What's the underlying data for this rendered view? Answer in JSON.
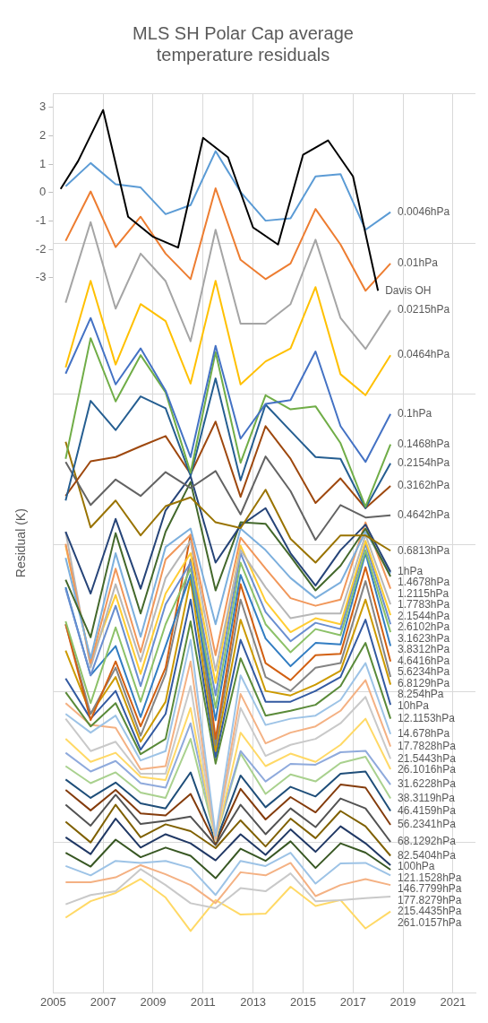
{
  "chart_data": {
    "type": "line",
    "title": "MLS SH Polar Cap average temperature residuals",
    "ylabel": "Residual (K)",
    "x": [
      2005.5,
      2006.5,
      2007.5,
      2008.5,
      2009.5,
      2010.5,
      2011.5,
      2012.5,
      2013.5,
      2014.5,
      2015.5,
      2016.5,
      2017.5,
      2018.5
    ],
    "xlim": [
      2005,
      2021.9
    ],
    "xticks": [
      2005,
      2007,
      2009,
      2011,
      2013,
      2015,
      2017,
      2019,
      2021
    ],
    "ylim": [
      -28.2,
      3.5
    ],
    "yticks": [
      {
        "value": -22.9,
        "label": null
      },
      {
        "value": -17.6,
        "label": null
      },
      {
        "value": -12.4,
        "label": null
      },
      {
        "value": -7.1,
        "label": null
      },
      -3,
      -2,
      {
        "value": -1.8,
        "label": null
      },
      -1,
      0,
      1,
      2,
      3,
      {
        "value": 3.5,
        "label": null
      }
    ],
    "grid": true,
    "legend": false,
    "marker": "none",
    "line_style": "solid",
    "series": [
      {
        "name": "Davis OH",
        "color": "#000000",
        "x": [
          2005.3,
          2006,
          2007,
          2008,
          2009,
          2010,
          2011,
          2012,
          2013,
          2014,
          2015,
          2016,
          2017,
          2018
        ],
        "values": [
          0.13,
          1.11,
          2.91,
          -0.85,
          -1.56,
          -1.94,
          1.93,
          1.24,
          -1.23,
          -1.83,
          1.33,
          1.84,
          0.57,
          -3.46
        ]
      },
      {
        "name": "0.0046hPa",
        "color": "#5b9bd5",
        "values": [
          0.22,
          1.04,
          0.29,
          0.18,
          -0.76,
          -0.44,
          1.46,
          0.02,
          -0.99,
          -0.91,
          0.57,
          0.65,
          -1.31,
          -0.69
        ]
      },
      {
        "name": "0.01hPa",
        "color": "#ed7d31",
        "values": [
          -1.7,
          0.04,
          -1.92,
          -0.85,
          -2.15,
          -3.05,
          0.15,
          -2.37,
          -3.05,
          -2.5,
          -0.58,
          -1.83,
          -3.46,
          -2.5
        ]
      },
      {
        "name": "0.0215hPa",
        "color": "#a5a5a5",
        "values": [
          -3.88,
          -1.04,
          -4.09,
          -2.15,
          -3.12,
          -5.24,
          -1.31,
          -4.62,
          -4.62,
          -3.93,
          -1.66,
          -4.42,
          -5.51,
          -4.15
        ]
      },
      {
        "name": "0.0464hPa",
        "color": "#ffc000",
        "values": [
          -6.16,
          -3.11,
          -6.06,
          -3.93,
          -4.53,
          -6.73,
          -3.11,
          -6.76,
          -5.95,
          -5.49,
          -3.33,
          -6.4,
          -7.14,
          -5.73
        ]
      },
      {
        "name": "0.1hPa",
        "color": "#4472c4",
        "values": [
          -6.38,
          -4.42,
          -6.76,
          -5.49,
          -6.98,
          -9.32,
          -5.4,
          -8.67,
          -7.45,
          -7.31,
          -5.6,
          -8.23,
          -9.49,
          -7.8
        ]
      },
      {
        "name": "0.1468hPa",
        "color": "#70ad47",
        "values": [
          -9.38,
          -5.13,
          -7.36,
          -5.73,
          -7.04,
          -9.87,
          -5.62,
          -9.52,
          -7.14,
          -7.64,
          -7.53,
          -8.83,
          -11.07,
          -8.87
        ]
      },
      {
        "name": "0.2154hPa",
        "color": "#255e91",
        "values": [
          -10.85,
          -7.34,
          -8.37,
          -7.18,
          -7.6,
          -9.98,
          -6.55,
          -10.14,
          -7.47,
          -8.4,
          -9.32,
          -9.38,
          -11.12,
          -9.54
        ]
      },
      {
        "name": "0.3162hPa",
        "color": "#9e480e",
        "values": [
          -10.69,
          -9.47,
          -9.32,
          -8.94,
          -8.58,
          -9.92,
          -8.07,
          -10.72,
          -8.23,
          -9.38,
          -10.94,
          -10.07,
          -11.12,
          -10.34
        ]
      },
      {
        "name": "0.4642hPa",
        "color": "#636363",
        "values": [
          -9.49,
          -11.01,
          -10.11,
          -10.69,
          -9.85,
          -10.41,
          -9.81,
          -11.34,
          -9.3,
          -10.52,
          -12.24,
          -11.01,
          -11.45,
          -11.37
        ]
      },
      {
        "name": "0.6813hPa",
        "color": "#997300",
        "values": [
          -8.78,
          -11.8,
          -10.85,
          -12.08,
          -11.05,
          -10.74,
          -11.62,
          -11.82,
          -10.47,
          -12.2,
          -13.04,
          -12.08,
          -12.08,
          -12.62
        ]
      },
      {
        "name": "1hPa",
        "color": "#264478",
        "values": [
          -11.95,
          -14.13,
          -11.5,
          -13.96,
          -11.2,
          -10.0,
          -13.04,
          -11.73,
          -11.12,
          -12.71,
          -13.85,
          -12.6,
          -11.7,
          -13.36
        ]
      },
      {
        "name": "1.2115hPa",
        "color": "#43682b",
        "values": [
          -13.64,
          -15.67,
          -12.0,
          -14.83,
          -11.95,
          -10.2,
          -14.02,
          -11.62,
          -11.67,
          -12.82,
          -14.02,
          -13.15,
          -11.84,
          -13.53
        ]
      },
      {
        "name": "1.4678hPa",
        "color": "#7cafdd",
        "values": [
          -12.87,
          -16.41,
          -12.71,
          -15.65,
          -12.49,
          -11.84,
          -15.21,
          -11.84,
          -12.6,
          -13.58,
          -14.29,
          -13.74,
          -11.95,
          -13.42
        ]
      },
      {
        "name": "1.7783hPa",
        "color": "#f1975a",
        "values": [
          -12.38,
          -16.58,
          -13.25,
          -16.2,
          -12.93,
          -12.06,
          -16.3,
          -12.16,
          -13.25,
          -14.29,
          -14.56,
          -14.34,
          -11.62,
          -13.96
        ]
      },
      {
        "name": "2.1544hPa",
        "color": "#b7b7b7",
        "values": [
          -11.95,
          -16.74,
          -13.8,
          -16.52,
          -13.58,
          -12.27,
          -16.85,
          -12.6,
          -13.91,
          -15.0,
          -14.83,
          -14.83,
          -12.06,
          -14.51
        ]
      },
      {
        "name": "2.6102hPa",
        "color": "#ffcd33",
        "values": [
          -12.44,
          -16.52,
          -14.18,
          -16.96,
          -14.13,
          -12.71,
          -17.28,
          -12.44,
          -14.4,
          -15.49,
          -15.0,
          -15.21,
          -12.27,
          -14.89
        ]
      },
      {
        "name": "3.1623hPa",
        "color": "#698ed0",
        "values": [
          -13.96,
          -17.01,
          -14.56,
          -17.39,
          -14.51,
          -13.04,
          -17.72,
          -12.71,
          -14.78,
          -15.81,
          -15.16,
          -15.38,
          -12.38,
          -15.21
        ]
      },
      {
        "name": "3.8312hPa",
        "color": "#8cc168",
        "values": [
          -15.11,
          -17.99,
          -15.32,
          -17.94,
          -15.21,
          -13.25,
          -18.16,
          -13.04,
          -15.21,
          -16.2,
          -15.38,
          -15.6,
          -12.6,
          -15.49
        ]
      },
      {
        "name": "4.6416hPa",
        "color": "#327dc2",
        "values": [
          -13.91,
          -17.01,
          -15.98,
          -18.48,
          -15.98,
          -13.47,
          -18.59,
          -13.47,
          -15.71,
          -16.69,
          -15.87,
          -15.92,
          -12.71,
          -15.98
        ]
      },
      {
        "name": "5.6234hPa",
        "color": "#d26012",
        "values": [
          -15.21,
          -18.59,
          -16.52,
          -18.81,
          -16.74,
          -12.06,
          -19.25,
          -13.8,
          -16.58,
          -17.18,
          -16.3,
          -16.25,
          -13.2,
          -16.52
        ]
      },
      {
        "name": "6.8129hPa",
        "color": "#848484",
        "values": [
          -15.21,
          -18.37,
          -16.74,
          -19.14,
          -16.96,
          -12.93,
          -19.46,
          -14.34,
          -17.07,
          -17.56,
          -16.74,
          -16.58,
          -13.69,
          -17.07
        ]
      },
      {
        "name": "8.254hPa",
        "color": "#cc9a00",
        "values": [
          -16.14,
          -18.37,
          -17.07,
          -19.35,
          -17.94,
          -13.64,
          -19.68,
          -15.05,
          -17.56,
          -17.72,
          -17.34,
          -16.85,
          -14.34,
          -17.34
        ]
      },
      {
        "name": "10hPa",
        "color": "#335aa1",
        "values": [
          -17.12,
          -18.54,
          -17.56,
          -19.63,
          -18.37,
          -14.34,
          -19.9,
          -15.76,
          -17.94,
          -17.94,
          -17.56,
          -17.07,
          -15.05,
          -18.05
        ]
      },
      {
        "name": "12.1153hPa",
        "color": "#5a8a39",
        "values": [
          -17.61,
          -18.81,
          -17.99,
          -19.79,
          -19.25,
          -15.11,
          -20.12,
          -16.41,
          -18.43,
          -18.26,
          -18.05,
          -17.39,
          -15.87,
          -18.54
        ]
      },
      {
        "name": "14.678hPa",
        "color": "#9dc3e6",
        "values": [
          -18.37,
          -19.03,
          -18.43,
          -20.01,
          -19.68,
          -15.76,
          -22.66,
          -17.01,
          -18.76,
          -18.54,
          -18.43,
          -17.88,
          -16.58,
          -19.08
        ]
      },
      {
        "name": "17.7828hPa",
        "color": "#f4b183",
        "values": [
          -17.99,
          -18.76,
          -18.86,
          -20.32,
          -20.21,
          -16.52,
          -22.77,
          -17.67,
          -19.41,
          -19.03,
          -18.81,
          -18.26,
          -17.18,
          -19.52
        ]
      },
      {
        "name": "21.5443hPa",
        "color": "#c9c9c9",
        "values": [
          -18.54,
          -19.68,
          -19.35,
          -20.48,
          -20.48,
          -17.39,
          -22.82,
          -18.16,
          -19.85,
          -19.46,
          -19.25,
          -18.7,
          -17.77,
          -19.95
        ]
      },
      {
        "name": "26.1016hPa",
        "color": "#ffd966",
        "values": [
          -19.25,
          -20.06,
          -19.74,
          -20.59,
          -20.7,
          -18.16,
          -22.86,
          -19.03,
          -20.21,
          -19.77,
          -20.06,
          -19.46,
          -18.54,
          -20.32
        ]
      },
      {
        "name": "31.6228hPa",
        "color": "#8faadc",
        "values": [
          -19.74,
          -20.4,
          -20.03,
          -20.81,
          -20.97,
          -18.7,
          -22.72,
          -19.68,
          -20.75,
          -20.13,
          -20.16,
          -19.72,
          -19.67,
          -20.86
        ]
      },
      {
        "name": "38.3119hPa",
        "color": "#a9d18e",
        "values": [
          -20.21,
          -20.81,
          -20.43,
          -21.14,
          -21.33,
          -19.25,
          -22.77,
          -19.77,
          -21.19,
          -20.5,
          -20.75,
          -20.1,
          -19.88,
          -21.35
        ]
      },
      {
        "name": "46.4159hPa",
        "color": "#1f4e79",
        "values": [
          -20.68,
          -21.33,
          -20.79,
          -21.52,
          -21.7,
          -20.43,
          -22.88,
          -20.54,
          -21.66,
          -20.94,
          -21.28,
          -20.48,
          -20.4,
          -21.79
        ]
      },
      {
        "name": "56.2341hPa",
        "color": "#843c0c",
        "values": [
          -21.05,
          -21.77,
          -21.05,
          -21.88,
          -21.95,
          -21.19,
          -22.93,
          -21.01,
          -22.09,
          -21.3,
          -21.84,
          -20.86,
          -20.97,
          -22.28
        ]
      },
      {
        "name": "68.1292hPa",
        "color": "#525252",
        "values": [
          -21.57,
          -22.31,
          -21.22,
          -22.25,
          -22.14,
          -21.99,
          -22.99,
          -21.57,
          -22.61,
          -21.7,
          -22.36,
          -21.35,
          -21.7,
          -22.88
        ]
      },
      {
        "name": "82.5404hPa",
        "color": "#7f6000",
        "values": [
          -22.17,
          -22.9,
          -21.57,
          -22.72,
          -22.26,
          -22.5,
          -23.1,
          -22.12,
          -23.04,
          -22.06,
          -22.75,
          -21.79,
          -22.33,
          -23.37
        ]
      },
      {
        "name": "100hPa",
        "color": "#203864",
        "values": [
          -22.72,
          -23.31,
          -22.06,
          -23.08,
          -22.61,
          -22.93,
          -23.53,
          -22.61,
          -23.34,
          -22.44,
          -23.23,
          -22.33,
          -22.93,
          -23.7
        ]
      },
      {
        "name": "121.1528hPa",
        "color": "#385723",
        "values": [
          -23.26,
          -23.75,
          -22.8,
          -23.42,
          -23.08,
          -23.37,
          -24.16,
          -23.12,
          -23.55,
          -22.86,
          -23.8,
          -22.93,
          -23.26,
          -23.86
        ]
      },
      {
        "name": "146.7799hPa",
        "color": "#9dc3e6",
        "values": [
          -23.73,
          -24.06,
          -23.55,
          -23.62,
          -23.55,
          -23.8,
          -24.75,
          -23.55,
          -23.73,
          -23.26,
          -24.35,
          -23.64,
          -23.62,
          -24.06
        ]
      },
      {
        "name": "177.8279hPa",
        "color": "#f4b183",
        "values": [
          -24.3,
          -24.3,
          -24.13,
          -23.7,
          -24.02,
          -24.4,
          -25.04,
          -23.95,
          -24.06,
          -23.62,
          -24.79,
          -24.4,
          -24.19,
          -24.4
        ]
      },
      {
        "name": "215.4435hPa",
        "color": "#c9c9c9",
        "values": [
          -25.08,
          -24.75,
          -24.62,
          -23.84,
          -24.4,
          -25.04,
          -25.22,
          -24.51,
          -24.62,
          -23.99,
          -24.97,
          -24.93,
          -24.86,
          -24.81
        ]
      },
      {
        "name": "261.0157hPa",
        "color": "#ffd966",
        "values": [
          -25.55,
          -24.97,
          -24.68,
          -24.19,
          -24.84,
          -26.02,
          -24.93,
          -25.44,
          -25.41,
          -24.46,
          -25.14,
          -24.93,
          -25.93,
          -25.33
        ]
      }
    ]
  }
}
